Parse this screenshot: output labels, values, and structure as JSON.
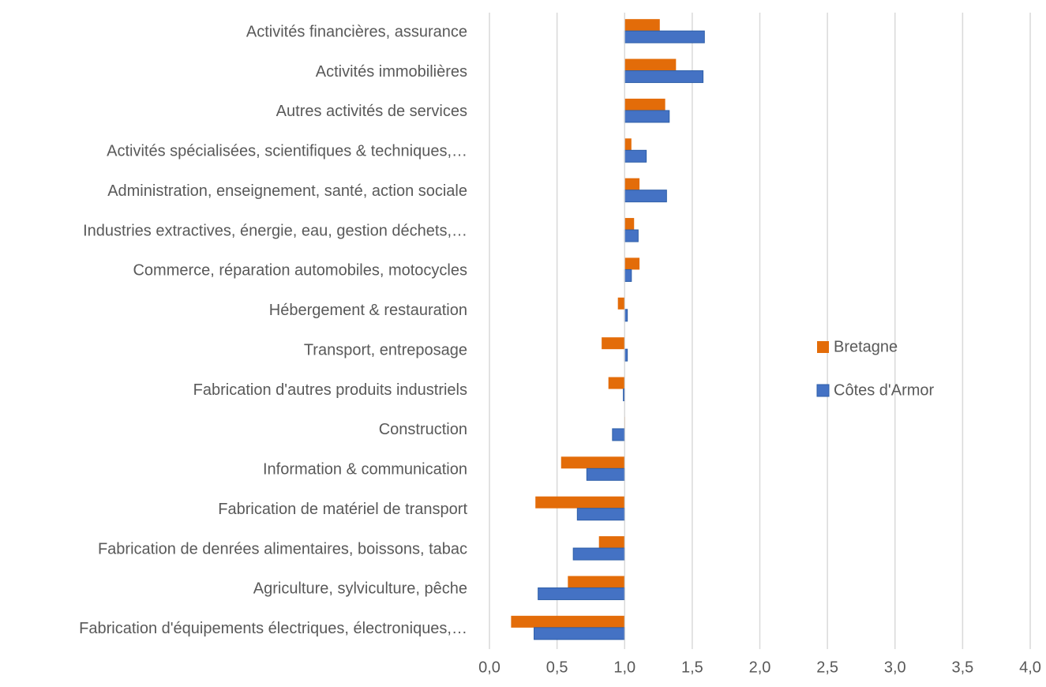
{
  "chart_data": {
    "type": "barh",
    "categories": [
      "Activités financières, assurance",
      "Activités immobilières",
      "Autres activités de services",
      "Activités spécialisées, scientifiques & techniques,…",
      "Administration, enseignement, santé, action sociale",
      "Industries extractives, énergie, eau, gestion déchets,…",
      "Commerce, réparation automobiles, motocycles",
      "Hébergement & restauration",
      "Transport, entreposage",
      "Fabrication d'autres produits industriels",
      "Construction",
      "Information & communication",
      "Fabrication de matériel de transport",
      "Fabrication de denrées alimentaires, boissons, tabac",
      "Agriculture, sylviculture, pêche",
      "Fabrication d'équipements électriques, électroniques,…"
    ],
    "series": [
      {
        "name": "Bretagne",
        "color": "#e36c09",
        "values": [
          1.26,
          1.38,
          1.3,
          1.05,
          1.11,
          1.07,
          1.11,
          0.95,
          0.83,
          0.88,
          1.0,
          0.53,
          0.34,
          0.81,
          0.58,
          0.16
        ]
      },
      {
        "name": "Côtes d'Armor",
        "color": "#4472c4",
        "values": [
          1.59,
          1.58,
          1.33,
          1.16,
          1.31,
          1.1,
          1.05,
          1.02,
          1.02,
          0.99,
          0.91,
          0.72,
          0.65,
          0.62,
          0.36,
          0.33
        ]
      }
    ],
    "baseline": 1,
    "xlim": [
      0,
      4
    ],
    "xticks": [
      {
        "value": 0,
        "label": "0,0"
      },
      {
        "value": 0.5,
        "label": "0,5"
      },
      {
        "value": 1,
        "label": "1,0"
      },
      {
        "value": 1.5,
        "label": "1,5"
      },
      {
        "value": 2,
        "label": "2,0"
      },
      {
        "value": 2.5,
        "label": "2,5"
      },
      {
        "value": 3,
        "label": "3,0"
      },
      {
        "value": 3.5,
        "label": "3,5"
      },
      {
        "value": 4,
        "label": "4,0"
      }
    ],
    "grid": true,
    "legend": "right"
  }
}
